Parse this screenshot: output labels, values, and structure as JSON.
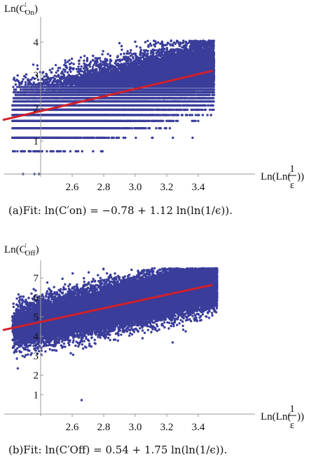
{
  "colors": {
    "points": "#3a3d9a",
    "fit_line": "#d1202a",
    "axis": "#9a9a9a"
  },
  "chart_data": [
    {
      "type": "scatter",
      "ylabel_main": "Ln(C",
      "ylabel_sup": "'",
      "ylabel_sub": "On",
      "ylabel_close": ")",
      "xlabel_main": "Ln(Ln(",
      "xlabel_frac_num": "1",
      "xlabel_frac_den": "ε",
      "xlabel_close": "))",
      "xlim": [
        2.38,
        3.5
      ],
      "ylim": [
        0.0,
        4.3
      ],
      "x_ticks": [
        "2.6",
        "2.8",
        "3.0",
        "3.2",
        "3.4"
      ],
      "x_tick_values": [
        2.6,
        2.8,
        3.0,
        3.2,
        3.4
      ],
      "y_ticks": [
        "1",
        "2",
        "3",
        "4"
      ],
      "y_tick_values": [
        1,
        2,
        3,
        4
      ],
      "fit": {
        "intercept": -0.78,
        "slope": 1.12
      },
      "point_cloud": {
        "x_range": [
          2.22,
          3.5
        ],
        "levels": [
          0.0,
          0.69,
          1.1,
          1.39,
          1.61,
          1.79,
          1.95,
          2.08,
          2.2,
          2.3,
          2.4,
          2.48,
          2.56,
          2.64,
          2.71
        ],
        "continuous_above": 2.71,
        "y_max": 4.05,
        "n_points": 26000
      },
      "caption": "(a)Fit: ln(C′on) = −0.78 + 1.12 ln(ln(1/ϵ))."
    },
    {
      "type": "scatter",
      "ylabel_main": "Ln(C",
      "ylabel_sup": "'",
      "ylabel_sub": "Off",
      "ylabel_close": ")",
      "xlabel_main": "Ln(Ln(",
      "xlabel_frac_num": "1",
      "xlabel_frac_den": "ε",
      "xlabel_close": "))",
      "xlim": [
        2.38,
        3.5
      ],
      "ylim": [
        0.0,
        7.8
      ],
      "x_ticks": [
        "2.6",
        "2.8",
        "3.0",
        "3.2",
        "3.4"
      ],
      "x_tick_values": [
        2.6,
        2.8,
        3.0,
        3.2,
        3.4
      ],
      "y_ticks": [
        "1",
        "2",
        "3",
        "4",
        "5",
        "6",
        "7"
      ],
      "y_tick_values": [
        1,
        2,
        3,
        4,
        5,
        6,
        7
      ],
      "fit": {
        "intercept": 0.54,
        "slope": 1.75
      },
      "point_cloud": {
        "x_range": [
          2.22,
          3.52
        ],
        "spread": 0.55,
        "y_max": 7.5,
        "n_points": 26000,
        "outlier": [
          2.66,
          0.72
        ]
      },
      "caption": "(b)Fit: ln(C′Off) = 0.54 + 1.75 ln(ln(1/ϵ))."
    }
  ]
}
